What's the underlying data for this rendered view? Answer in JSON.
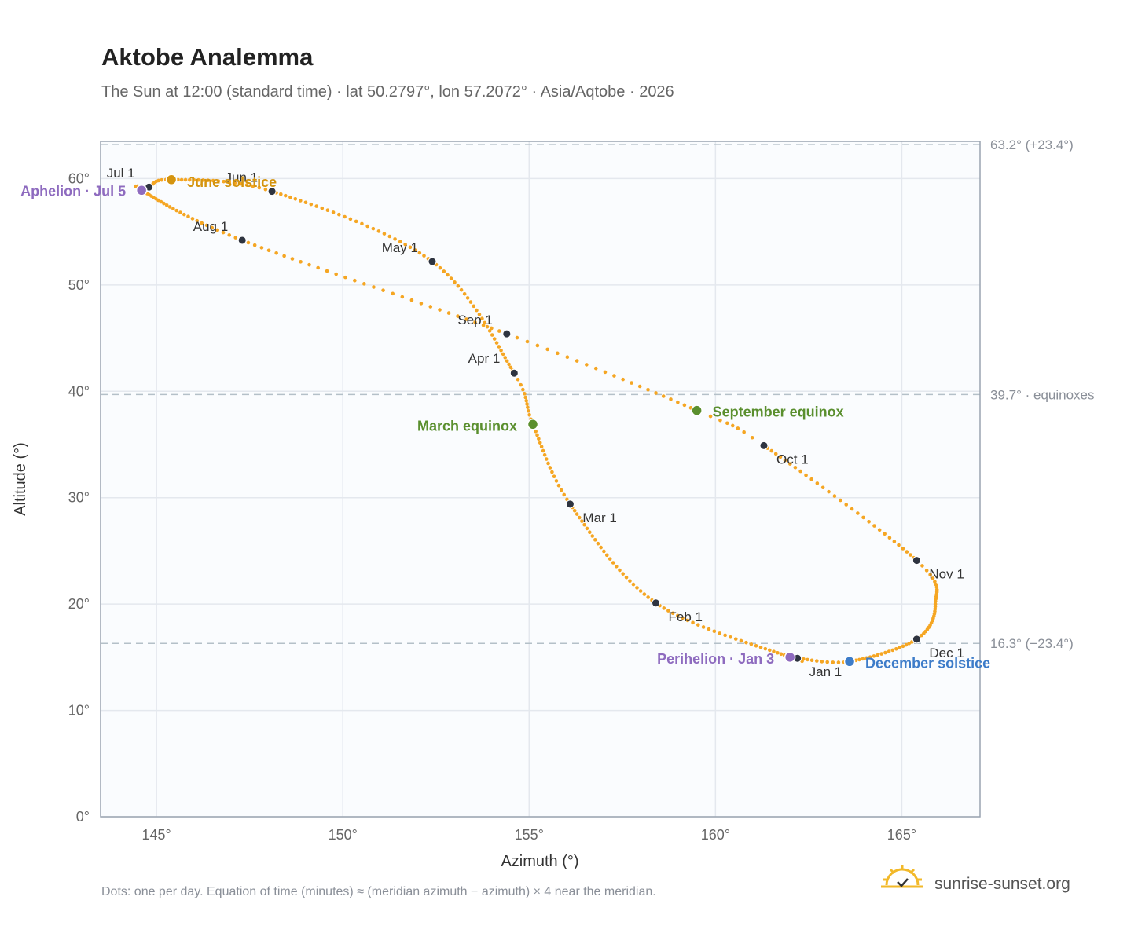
{
  "chart_data": {
    "type": "scatter",
    "title": "Aktobe Analemma",
    "subtitle": "The Sun at 12:00 (standard time) · lat 50.2797°, lon 57.2072° · Asia/Aqtobe · 2026",
    "xlabel": "Azimuth (°)",
    "ylabel": "Altitude (°)",
    "xlim": [
      143.5,
      167.1
    ],
    "ylim": [
      0,
      63.5
    ],
    "x_ticks": [
      145,
      150,
      155,
      160,
      165
    ],
    "x_tick_labels": [
      "145°",
      "150°",
      "155°",
      "160°",
      "165°"
    ],
    "y_ticks": [
      0,
      10,
      20,
      30,
      40,
      50,
      60
    ],
    "y_tick_labels": [
      "0°",
      "10°",
      "20°",
      "30°",
      "40°",
      "50°",
      "60°"
    ],
    "grid": true,
    "reference_lines": [
      {
        "y": 63.2,
        "label": "63.2° (+23.4°)"
      },
      {
        "y": 39.7,
        "label": "39.7° · equinoxes"
      },
      {
        "y": 16.3,
        "label": "16.3° (−23.4°)"
      }
    ],
    "series_color": "#f5a623",
    "month_markers": [
      {
        "label": "Jan 1",
        "azimuth": 162.2,
        "altitude": 14.9
      },
      {
        "label": "Feb 1",
        "azimuth": 158.4,
        "altitude": 20.1
      },
      {
        "label": "Mar 1",
        "azimuth": 156.1,
        "altitude": 29.4
      },
      {
        "label": "Apr 1",
        "azimuth": 154.6,
        "altitude": 41.7
      },
      {
        "label": "May 1",
        "azimuth": 152.4,
        "altitude": 52.2
      },
      {
        "label": "Jun 1",
        "azimuth": 148.1,
        "altitude": 58.8
      },
      {
        "label": "Jul 1",
        "azimuth": 144.8,
        "altitude": 59.2
      },
      {
        "label": "Aug 1",
        "azimuth": 147.3,
        "altitude": 54.2
      },
      {
        "label": "Sep 1",
        "azimuth": 154.4,
        "altitude": 45.4
      },
      {
        "label": "Oct 1",
        "azimuth": 161.3,
        "altitude": 34.9
      },
      {
        "label": "Nov 1",
        "azimuth": 165.4,
        "altitude": 24.1
      },
      {
        "label": "Dec 1",
        "azimuth": 165.4,
        "altitude": 16.7
      }
    ],
    "events": [
      {
        "label": "June solstice",
        "azimuth": 145.4,
        "altitude": 59.9,
        "color": "#d4940f"
      },
      {
        "label": "Aphelion · Jul 5",
        "azimuth": 144.6,
        "altitude": 58.9,
        "color": "#8e6bbf"
      },
      {
        "label": "March equinox",
        "azimuth": 155.1,
        "altitude": 36.9,
        "color": "#5a8f2e"
      },
      {
        "label": "September equinox",
        "azimuth": 159.5,
        "altitude": 38.2,
        "color": "#5a8f2e"
      },
      {
        "label": "Perihelion · Jan 3",
        "azimuth": 162.0,
        "altitude": 15.0,
        "color": "#8e6bbf"
      },
      {
        "label": "December solstice",
        "azimuth": 163.6,
        "altitude": 14.6,
        "color": "#3d7cc9"
      }
    ]
  },
  "footnote": "Dots: one per day. Equation of time (minutes) ≈ (meridian azimuth − azimuth) × 4 near the meridian.",
  "brand": {
    "name": "sunrise-sunset.org",
    "icon": "sun-check-icon",
    "color": "#f2b92a"
  }
}
